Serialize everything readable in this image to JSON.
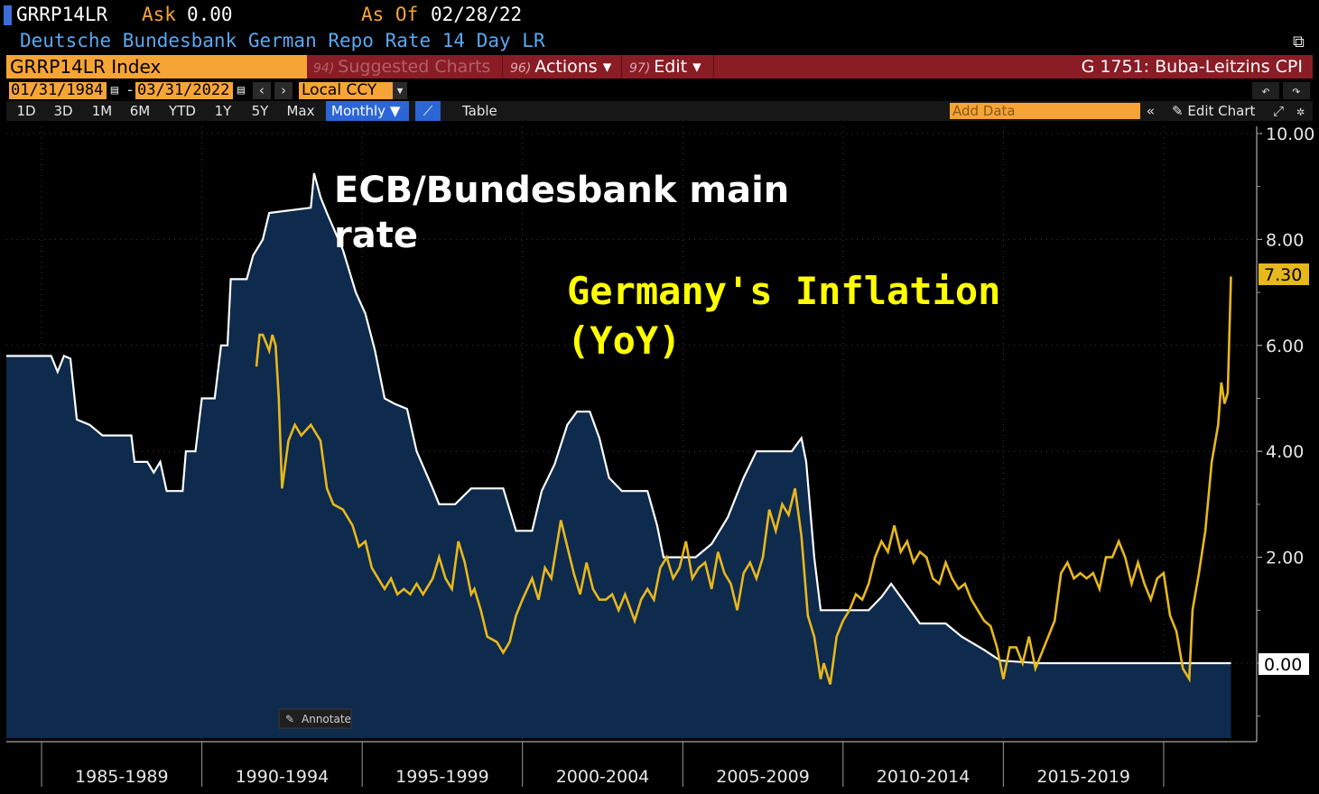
{
  "header": {
    "ticker": "GRRP14LR",
    "ask_label": "Ask",
    "ask_value": "0.00",
    "asof_label": "As Of",
    "asof_value": "02/28/22",
    "description": "Deutsche Bundesbank German Repo Rate 14 Day LR"
  },
  "toolbar": {
    "index_label": "GRRP14LR Index",
    "suggested_num": "94)",
    "suggested_label": "Suggested Charts",
    "actions_num": "96)",
    "actions_label": "Actions ▾",
    "edit_num": "97)",
    "edit_label": "Edit ▾",
    "chart_title": "G 1751: Buba-Leitzins CPI",
    "date_start": "01/31/1984",
    "date_dash": "-",
    "date_end": "03/31/2022",
    "currency": "Local CCY",
    "periods": [
      "1D",
      "3D",
      "1M",
      "6M",
      "YTD",
      "1Y",
      "5Y",
      "Max"
    ],
    "frequency": "Monthly ▼",
    "table_label": "Table",
    "add_data_placeholder": "Add Data",
    "edit_chart_label": "Edit Chart",
    "annotate_label": "Annotate"
  },
  "chart_data": {
    "type": "line",
    "x_tick_labels": [
      "1985-1989",
      "1990-1994",
      "1995-1999",
      "2000-2004",
      "2005-2009",
      "2010-2014",
      "2015-2019"
    ],
    "y_tick_labels": [
      "10.00",
      "8.00",
      "6.00",
      "4.00",
      "2.00",
      "0.00"
    ],
    "ylim": [
      -1.0,
      10.0
    ],
    "grid": true,
    "annotations": {
      "rate": [
        "ECB/Bundesbank main",
        "rate"
      ],
      "inflation": [
        "Germany's Inflation",
        "(YoY)"
      ]
    },
    "last_value_label": "7.30",
    "rate_last_label": "0.00",
    "colors": {
      "rate_line": "#ffffff",
      "rate_fill": "#0e2a4d",
      "inflation_line": "#e7b81c",
      "annotation_inflation": "#ffff00"
    },
    "series": [
      {
        "key": "rate",
        "values": [
          [
            1984.0,
            5.8
          ],
          [
            1985.4,
            5.8
          ],
          [
            1985.6,
            5.5
          ],
          [
            1985.8,
            5.8
          ],
          [
            1986.0,
            5.75
          ],
          [
            1986.2,
            4.6
          ],
          [
            1986.6,
            4.5
          ],
          [
            1987.0,
            4.3
          ],
          [
            1987.9,
            4.3
          ],
          [
            1988.0,
            3.8
          ],
          [
            1988.4,
            3.8
          ],
          [
            1988.6,
            3.6
          ],
          [
            1988.8,
            3.8
          ],
          [
            1989.0,
            3.25
          ],
          [
            1989.5,
            3.25
          ],
          [
            1989.6,
            4.0
          ],
          [
            1989.9,
            4.0
          ],
          [
            1990.1,
            5.0
          ],
          [
            1990.5,
            5.0
          ],
          [
            1990.7,
            6.0
          ],
          [
            1990.9,
            6.0
          ],
          [
            1991.0,
            7.25
          ],
          [
            1991.5,
            7.25
          ],
          [
            1991.7,
            7.7
          ],
          [
            1992.0,
            8.0
          ],
          [
            1992.2,
            8.5
          ],
          [
            1993.5,
            8.6
          ],
          [
            1993.6,
            9.25
          ],
          [
            1993.8,
            8.8
          ],
          [
            1994.0,
            8.5
          ],
          [
            1994.5,
            7.8
          ],
          [
            1994.9,
            7.0
          ],
          [
            1995.2,
            6.6
          ],
          [
            1995.5,
            5.9
          ],
          [
            1995.8,
            5.0
          ],
          [
            1996.1,
            4.9
          ],
          [
            1996.5,
            4.8
          ],
          [
            1996.8,
            4.0
          ],
          [
            1997.3,
            3.3
          ],
          [
            1997.5,
            3.0
          ],
          [
            1998.0,
            3.0
          ],
          [
            1998.5,
            3.3
          ],
          [
            1999.5,
            3.3
          ],
          [
            1999.9,
            2.5
          ],
          [
            2000.4,
            2.5
          ],
          [
            2000.7,
            3.25
          ],
          [
            2001.1,
            3.75
          ],
          [
            2001.5,
            4.5
          ],
          [
            2001.8,
            4.75
          ],
          [
            2002.2,
            4.75
          ],
          [
            2002.5,
            4.25
          ],
          [
            2002.8,
            3.5
          ],
          [
            2003.2,
            3.25
          ],
          [
            2004.0,
            3.25
          ],
          [
            2004.3,
            2.6
          ],
          [
            2004.5,
            2.0
          ],
          [
            2005.5,
            2.0
          ],
          [
            2006.0,
            2.25
          ],
          [
            2006.5,
            2.75
          ],
          [
            2007.0,
            3.5
          ],
          [
            2007.4,
            4.0
          ],
          [
            2008.0,
            4.0
          ],
          [
            2008.5,
            4.0
          ],
          [
            2008.8,
            4.25
          ],
          [
            2008.95,
            3.8
          ],
          [
            2009.2,
            2.0
          ],
          [
            2009.4,
            1.0
          ],
          [
            2010.9,
            1.0
          ],
          [
            2011.3,
            1.25
          ],
          [
            2011.6,
            1.5
          ],
          [
            2011.9,
            1.25
          ],
          [
            2012.2,
            1.0
          ],
          [
            2012.5,
            0.75
          ],
          [
            2013.3,
            0.75
          ],
          [
            2013.8,
            0.5
          ],
          [
            2014.5,
            0.25
          ],
          [
            2015.0,
            0.05
          ],
          [
            2016.2,
            0.0
          ],
          [
            2021.9,
            0.0
          ],
          [
            2022.2,
            0.0
          ]
        ]
      },
      {
        "key": "inflation",
        "values": [
          [
            1991.8,
            5.6
          ],
          [
            1991.9,
            6.2
          ],
          [
            1992.0,
            6.2
          ],
          [
            1992.2,
            5.9
          ],
          [
            1992.3,
            6.2
          ],
          [
            1992.4,
            6.0
          ],
          [
            1992.5,
            5.0
          ],
          [
            1992.6,
            3.3
          ],
          [
            1992.8,
            4.2
          ],
          [
            1993.0,
            4.5
          ],
          [
            1993.2,
            4.3
          ],
          [
            1993.5,
            4.5
          ],
          [
            1993.8,
            4.2
          ],
          [
            1994.0,
            3.3
          ],
          [
            1994.2,
            3.0
          ],
          [
            1994.5,
            2.9
          ],
          [
            1994.8,
            2.6
          ],
          [
            1995.0,
            2.2
          ],
          [
            1995.2,
            2.3
          ],
          [
            1995.4,
            1.8
          ],
          [
            1995.6,
            1.6
          ],
          [
            1995.8,
            1.4
          ],
          [
            1996.0,
            1.6
          ],
          [
            1996.2,
            1.3
          ],
          [
            1996.4,
            1.4
          ],
          [
            1996.6,
            1.3
          ],
          [
            1996.8,
            1.5
          ],
          [
            1997.0,
            1.3
          ],
          [
            1997.3,
            1.6
          ],
          [
            1997.5,
            2.0
          ],
          [
            1997.7,
            1.6
          ],
          [
            1997.9,
            1.4
          ],
          [
            1998.1,
            2.3
          ],
          [
            1998.3,
            1.9
          ],
          [
            1998.5,
            1.3
          ],
          [
            1998.6,
            1.4
          ],
          [
            1998.8,
            1.0
          ],
          [
            1999.0,
            0.5
          ],
          [
            1999.3,
            0.4
          ],
          [
            1999.5,
            0.2
          ],
          [
            1999.7,
            0.4
          ],
          [
            1999.9,
            0.9
          ],
          [
            2000.1,
            1.2
          ],
          [
            2000.4,
            1.6
          ],
          [
            2000.6,
            1.2
          ],
          [
            2000.8,
            1.8
          ],
          [
            2001.0,
            1.6
          ],
          [
            2001.3,
            2.7
          ],
          [
            2001.5,
            2.2
          ],
          [
            2001.7,
            1.7
          ],
          [
            2001.9,
            1.3
          ],
          [
            2002.1,
            1.9
          ],
          [
            2002.3,
            1.4
          ],
          [
            2002.5,
            1.2
          ],
          [
            2002.7,
            1.2
          ],
          [
            2002.9,
            1.3
          ],
          [
            2003.1,
            1.0
          ],
          [
            2003.3,
            1.3
          ],
          [
            2003.6,
            0.8
          ],
          [
            2003.8,
            1.2
          ],
          [
            2004.0,
            1.4
          ],
          [
            2004.2,
            1.2
          ],
          [
            2004.4,
            1.8
          ],
          [
            2004.6,
            2.0
          ],
          [
            2004.8,
            1.6
          ],
          [
            2005.0,
            1.8
          ],
          [
            2005.2,
            2.3
          ],
          [
            2005.4,
            1.6
          ],
          [
            2005.6,
            1.8
          ],
          [
            2005.8,
            1.9
          ],
          [
            2006.0,
            1.4
          ],
          [
            2006.2,
            2.1
          ],
          [
            2006.4,
            1.7
          ],
          [
            2006.6,
            1.5
          ],
          [
            2006.8,
            1.0
          ],
          [
            2007.0,
            1.7
          ],
          [
            2007.2,
            1.9
          ],
          [
            2007.4,
            1.6
          ],
          [
            2007.6,
            2.0
          ],
          [
            2007.8,
            2.9
          ],
          [
            2008.0,
            2.5
          ],
          [
            2008.2,
            3.0
          ],
          [
            2008.4,
            2.8
          ],
          [
            2008.6,
            3.3
          ],
          [
            2008.8,
            2.4
          ],
          [
            2009.0,
            0.9
          ],
          [
            2009.2,
            0.5
          ],
          [
            2009.4,
            -0.3
          ],
          [
            2009.5,
            0.0
          ],
          [
            2009.7,
            -0.4
          ],
          [
            2009.9,
            0.5
          ],
          [
            2010.1,
            0.8
          ],
          [
            2010.3,
            1.0
          ],
          [
            2010.5,
            1.3
          ],
          [
            2010.7,
            1.2
          ],
          [
            2010.9,
            1.5
          ],
          [
            2011.1,
            2.0
          ],
          [
            2011.3,
            2.3
          ],
          [
            2011.5,
            2.1
          ],
          [
            2011.7,
            2.6
          ],
          [
            2011.9,
            2.1
          ],
          [
            2012.1,
            2.3
          ],
          [
            2012.3,
            1.9
          ],
          [
            2012.5,
            2.1
          ],
          [
            2012.7,
            2.0
          ],
          [
            2012.9,
            1.6
          ],
          [
            2013.1,
            1.5
          ],
          [
            2013.3,
            1.9
          ],
          [
            2013.5,
            1.6
          ],
          [
            2013.7,
            1.4
          ],
          [
            2013.9,
            1.5
          ],
          [
            2014.1,
            1.2
          ],
          [
            2014.3,
            1.0
          ],
          [
            2014.5,
            0.8
          ],
          [
            2014.7,
            0.7
          ],
          [
            2014.9,
            0.3
          ],
          [
            2015.1,
            -0.3
          ],
          [
            2015.3,
            0.3
          ],
          [
            2015.5,
            0.3
          ],
          [
            2015.7,
            0.0
          ],
          [
            2015.9,
            0.5
          ],
          [
            2016.1,
            -0.1
          ],
          [
            2016.3,
            0.2
          ],
          [
            2016.5,
            0.5
          ],
          [
            2016.7,
            0.8
          ],
          [
            2016.9,
            1.7
          ],
          [
            2017.1,
            1.9
          ],
          [
            2017.3,
            1.6
          ],
          [
            2017.5,
            1.7
          ],
          [
            2017.7,
            1.6
          ],
          [
            2017.9,
            1.7
          ],
          [
            2018.1,
            1.4
          ],
          [
            2018.3,
            2.0
          ],
          [
            2018.5,
            2.0
          ],
          [
            2018.7,
            2.3
          ],
          [
            2018.9,
            2.0
          ],
          [
            2019.1,
            1.5
          ],
          [
            2019.3,
            1.9
          ],
          [
            2019.5,
            1.5
          ],
          [
            2019.7,
            1.2
          ],
          [
            2019.9,
            1.6
          ],
          [
            2020.1,
            1.7
          ],
          [
            2020.3,
            0.9
          ],
          [
            2020.5,
            0.6
          ],
          [
            2020.7,
            -0.1
          ],
          [
            2020.9,
            -0.3
          ],
          [
            2021.0,
            1.0
          ],
          [
            2021.2,
            1.7
          ],
          [
            2021.4,
            2.5
          ],
          [
            2021.6,
            3.8
          ],
          [
            2021.8,
            4.5
          ],
          [
            2021.9,
            5.3
          ],
          [
            2022.0,
            4.9
          ],
          [
            2022.1,
            5.1
          ],
          [
            2022.2,
            7.3
          ]
        ]
      }
    ]
  }
}
